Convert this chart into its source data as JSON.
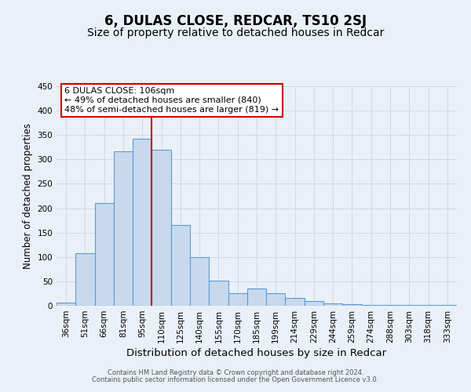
{
  "title": "6, DULAS CLOSE, REDCAR, TS10 2SJ",
  "subtitle": "Size of property relative to detached houses in Redcar",
  "xlabel": "Distribution of detached houses by size in Redcar",
  "ylabel": "Number of detached properties",
  "categories": [
    "36sqm",
    "51sqm",
    "66sqm",
    "81sqm",
    "95sqm",
    "110sqm",
    "125sqm",
    "140sqm",
    "155sqm",
    "170sqm",
    "185sqm",
    "199sqm",
    "214sqm",
    "229sqm",
    "244sqm",
    "259sqm",
    "274sqm",
    "288sqm",
    "303sqm",
    "318sqm",
    "333sqm"
  ],
  "values": [
    6,
    107,
    210,
    317,
    343,
    320,
    165,
    99,
    51,
    26,
    35,
    26,
    16,
    9,
    5,
    3,
    1,
    1,
    1,
    1,
    1
  ],
  "bar_color": "#c9d9ed",
  "bar_edge_color": "#5b9bd5",
  "vline_x": 5,
  "vline_color": "#cc0000",
  "annotation_text": "6 DULAS CLOSE: 106sqm\n← 49% of detached houses are smaller (840)\n48% of semi-detached houses are larger (819) →",
  "annotation_box_color": "#ffffff",
  "annotation_box_edge_color": "#cc0000",
  "ylim": [
    0,
    450
  ],
  "yticks": [
    0,
    50,
    100,
    150,
    200,
    250,
    300,
    350,
    400,
    450
  ],
  "grid_color": "#d0d8e8",
  "background_color": "#eaf0f8",
  "footer_line1": "Contains HM Land Registry data © Crown copyright and database right 2024.",
  "footer_line2": "Contains public sector information licensed under the Open Government Licence v3.0.",
  "title_fontsize": 12,
  "subtitle_fontsize": 10,
  "xlabel_fontsize": 9.5,
  "ylabel_fontsize": 8.5,
  "tick_fontsize": 7.5,
  "annotation_fontsize": 8,
  "footer_fontsize": 6
}
